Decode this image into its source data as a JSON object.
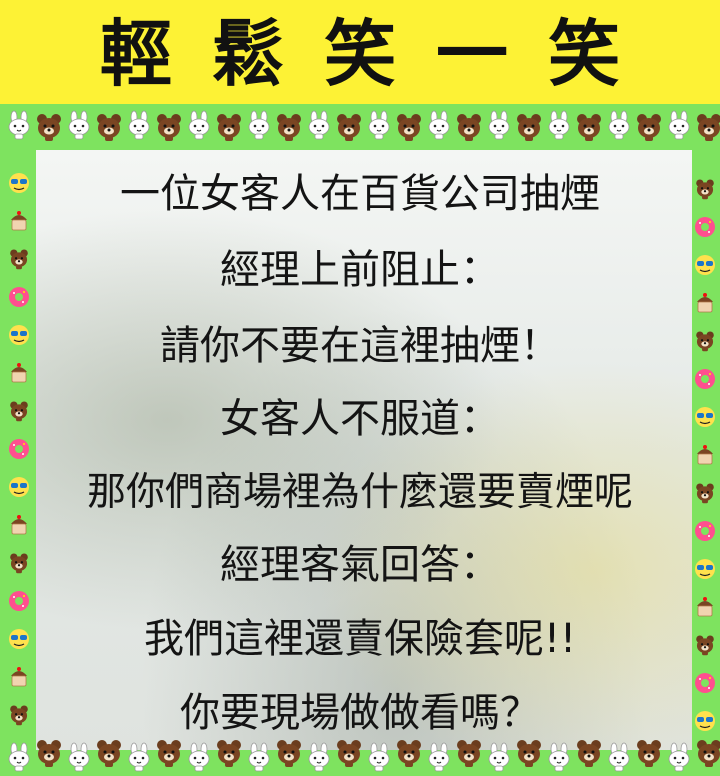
{
  "title": "輕鬆笑一笑",
  "lines": [
    "一位女客人在百貨公司抽煙",
    "經理上前阻止：",
    "請你不要在這裡抽煙！",
    "女客人不服道：",
    "那你們商場裡為什麼還要賣煙呢",
    "經理客氣回答：",
    "我們這裡還賣保險套呢!!",
    "你要現場做做看嗎？"
  ],
  "border_icons": [
    "bear-icon",
    "bunny-icon",
    "donut-icon",
    "cupcake-icon",
    "face-icon"
  ],
  "colors": {
    "title_band": "#fdf235",
    "frame_green": "#7ee35f",
    "text": "#141414"
  }
}
